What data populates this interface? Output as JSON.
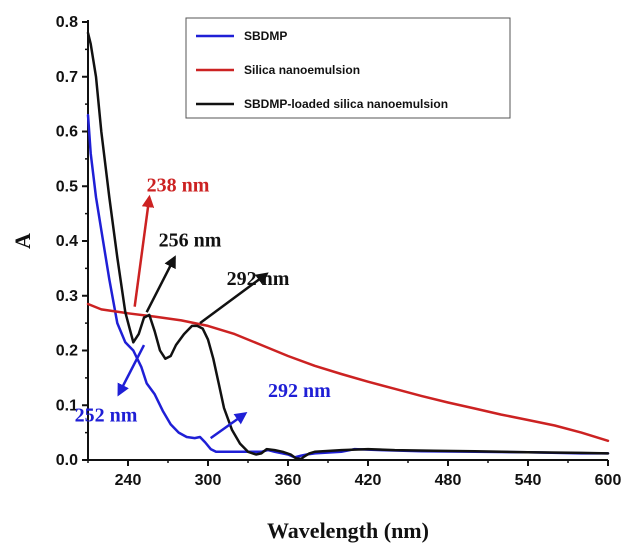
{
  "chart_data": {
    "type": "line",
    "xlabel": "Wavelength (nm)",
    "ylabel": "A",
    "xlim": [
      210,
      600
    ],
    "ylim": [
      0,
      0.8
    ],
    "xticks": [
      240,
      300,
      360,
      420,
      480,
      540,
      600
    ],
    "yticks": [
      0.0,
      0.1,
      0.2,
      0.3,
      0.4,
      0.5,
      0.6,
      0.7,
      0.8
    ],
    "ytick_labels": [
      "0.0",
      "0.1",
      "0.2",
      "0.3",
      "0.4",
      "0.5",
      "0.6",
      "0.7",
      "0.8"
    ],
    "legend_position": "top-right",
    "series": [
      {
        "name": "SBDMP",
        "color": "#1f1fd6",
        "x": [
          210,
          212,
          216,
          220,
          226,
          232,
          238,
          244,
          250,
          254,
          260,
          266,
          272,
          278,
          284,
          290,
          294,
          298,
          302,
          306,
          312,
          320,
          330,
          340,
          345,
          350,
          360,
          365,
          370,
          374,
          380,
          400,
          410,
          430,
          460,
          500,
          540,
          580,
          600
        ],
        "y": [
          0.63,
          0.56,
          0.48,
          0.42,
          0.33,
          0.25,
          0.215,
          0.2,
          0.17,
          0.14,
          0.12,
          0.09,
          0.065,
          0.05,
          0.042,
          0.04,
          0.042,
          0.032,
          0.02,
          0.015,
          0.015,
          0.015,
          0.015,
          0.015,
          0.018,
          0.015,
          0.01,
          0.005,
          0.008,
          0.01,
          0.012,
          0.015,
          0.02,
          0.018,
          0.016,
          0.015,
          0.014,
          0.012,
          0.012
        ]
      },
      {
        "name": "Silica nanoemulsion",
        "color": "#cc2222",
        "x": [
          210,
          220,
          240,
          260,
          280,
          300,
          320,
          340,
          360,
          380,
          400,
          420,
          440,
          460,
          480,
          500,
          520,
          540,
          560,
          580,
          600
        ],
        "y": [
          0.285,
          0.275,
          0.268,
          0.262,
          0.255,
          0.245,
          0.23,
          0.21,
          0.19,
          0.172,
          0.157,
          0.143,
          0.13,
          0.117,
          0.105,
          0.094,
          0.083,
          0.073,
          0.063,
          0.05,
          0.035
        ]
      },
      {
        "name": "SBDMP-loaded silica nanoemulsion",
        "color": "#111111",
        "x": [
          210,
          212,
          216,
          220,
          226,
          232,
          238,
          244,
          248,
          252,
          256,
          260,
          264,
          268,
          272,
          276,
          282,
          288,
          292,
          296,
          300,
          304,
          308,
          312,
          318,
          324,
          330,
          336,
          340,
          344,
          350,
          356,
          362,
          366,
          370,
          372,
          376,
          380,
          400,
          420,
          440,
          470,
          500,
          540,
          580,
          600
        ],
        "y": [
          0.78,
          0.76,
          0.7,
          0.6,
          0.48,
          0.37,
          0.27,
          0.215,
          0.23,
          0.26,
          0.265,
          0.235,
          0.2,
          0.185,
          0.19,
          0.21,
          0.23,
          0.245,
          0.245,
          0.24,
          0.22,
          0.185,
          0.14,
          0.095,
          0.055,
          0.03,
          0.015,
          0.01,
          0.012,
          0.02,
          0.018,
          0.015,
          0.01,
          0.003,
          0.002,
          0.006,
          0.012,
          0.015,
          0.018,
          0.02,
          0.018,
          0.017,
          0.016,
          0.014,
          0.013,
          0.012
        ]
      }
    ],
    "annotations": [
      {
        "text": "238 nm",
        "color": "#cc2222",
        "tail": [
          245,
          0.28
        ],
        "head": [
          256,
          0.48
        ],
        "label_pos": [
          254,
          0.49
        ]
      },
      {
        "text": "256 nm",
        "color": "#111111",
        "tail": [
          254,
          0.27
        ],
        "head": [
          275,
          0.37
        ],
        "label_pos": [
          263,
          0.39
        ]
      },
      {
        "text": "292 nm",
        "color": "#111111",
        "tail": [
          294,
          0.25
        ],
        "head": [
          344,
          0.34
        ],
        "label_pos": [
          314,
          0.32
        ]
      },
      {
        "text": "252 nm",
        "color": "#1f1fd6",
        "tail": [
          252,
          0.21
        ],
        "head": [
          233,
          0.12
        ],
        "label_pos": [
          200,
          0.07
        ]
      },
      {
        "text": "292 nm",
        "color": "#1f1fd6",
        "tail": [
          302,
          0.04
        ],
        "head": [
          328,
          0.085
        ],
        "label_pos": [
          345,
          0.115
        ]
      }
    ]
  }
}
